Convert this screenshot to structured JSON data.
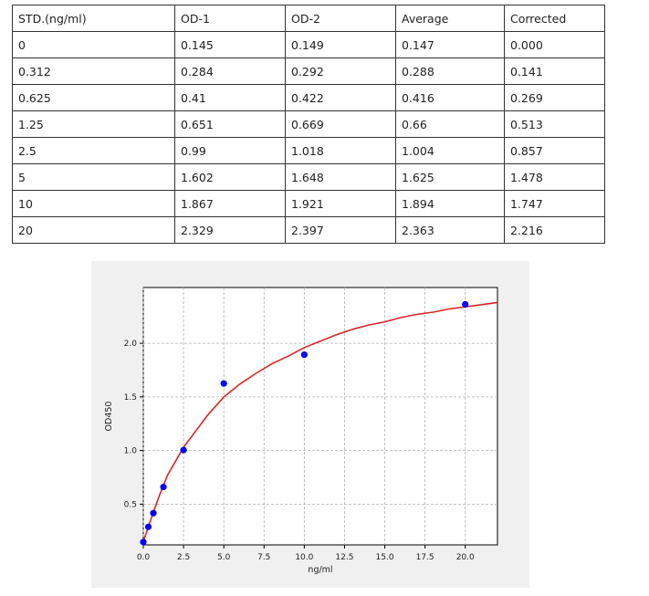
{
  "table": {
    "headers": [
      "STD.(ng/ml)",
      "OD-1",
      "OD-2",
      "Average",
      "Corrected"
    ],
    "rows": [
      [
        "0",
        "0.145",
        "0.149",
        "0.147",
        "0.000"
      ],
      [
        "0.312",
        "0.284",
        "0.292",
        "0.288",
        "0.141"
      ],
      [
        "0.625",
        "0.41",
        "0.422",
        "0.416",
        "0.269"
      ],
      [
        "1.25",
        "0.651",
        "0.669",
        "0.66",
        "0.513"
      ],
      [
        "2.5",
        "0.99",
        "1.018",
        "1.004",
        "0.857"
      ],
      [
        "5",
        "1.602",
        "1.648",
        "1.625",
        "1.478"
      ],
      [
        "10",
        "1.867",
        "1.921",
        "1.894",
        "1.747"
      ],
      [
        "20",
        "2.329",
        "2.397",
        "2.363",
        "2.216"
      ]
    ]
  },
  "chart_data": {
    "type": "scatter",
    "xlabel": "ng/ml",
    "ylabel": "OD450",
    "xlim": [
      0,
      22
    ],
    "ylim": [
      0.12,
      2.52
    ],
    "xticks": [
      "0.0",
      "2.5",
      "5.0",
      "7.5",
      "10.0",
      "12.5",
      "15.0",
      "17.5",
      "20.0"
    ],
    "xtick_values": [
      0,
      2.5,
      5,
      7.5,
      10,
      12.5,
      15,
      17.5,
      20
    ],
    "yticks": [
      "0.5",
      "1.0",
      "1.5",
      "2.0"
    ],
    "ytick_values": [
      0.5,
      1.0,
      1.5,
      2.0
    ],
    "grid": true,
    "points": {
      "x": [
        0,
        0.312,
        0.625,
        1.25,
        2.5,
        5,
        10,
        20
      ],
      "y": [
        0.147,
        0.288,
        0.416,
        0.66,
        1.004,
        1.625,
        1.894,
        2.363
      ],
      "color": "#0000ff"
    },
    "fit_curve": {
      "color": "#d62728",
      "x": [
        0,
        0.5,
        1,
        1.5,
        2,
        2.5,
        3,
        4,
        5,
        6,
        7,
        8,
        9,
        10,
        11,
        12,
        13,
        14,
        15,
        16,
        17,
        18,
        19,
        20,
        21,
        22
      ],
      "y": [
        0.15,
        0.37,
        0.58,
        0.77,
        0.9,
        1.03,
        1.13,
        1.33,
        1.5,
        1.62,
        1.72,
        1.81,
        1.88,
        1.96,
        2.02,
        2.08,
        2.13,
        2.17,
        2.2,
        2.24,
        2.27,
        2.29,
        2.32,
        2.34,
        2.36,
        2.38
      ]
    }
  }
}
